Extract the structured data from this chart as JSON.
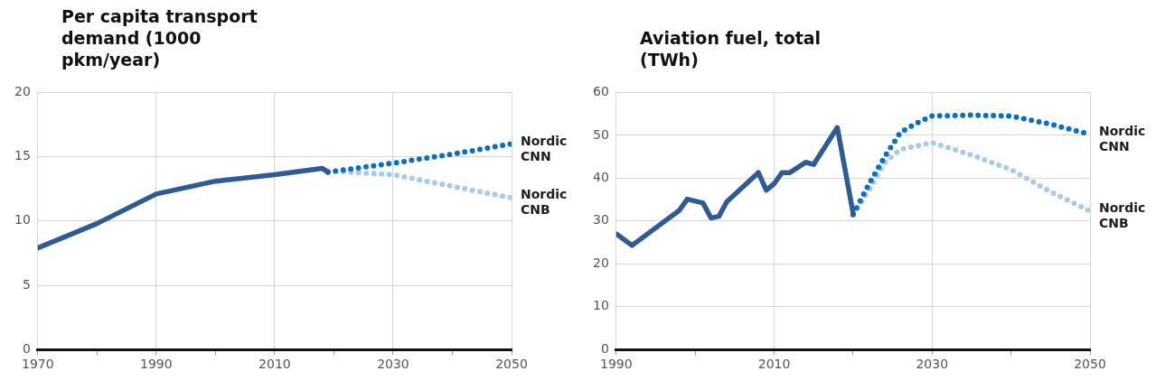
{
  "chart_data": [
    {
      "type": "line",
      "title": "Per capita transport demand (1000 pkm/year)",
      "xlim": [
        1970,
        2050
      ],
      "xticks": [
        1970,
        {
          "value": 1980,
          "label": null
        },
        1990,
        {
          "value": 2000,
          "label": null
        },
        2010,
        {
          "value": 2020,
          "label": null
        },
        2030,
        {
          "value": 2040,
          "label": null
        },
        2050
      ],
      "ylim": [
        0,
        20
      ],
      "yticks": [
        0,
        5,
        10,
        15,
        20
      ],
      "grid": true,
      "series": [
        {
          "color": "#2f5a94",
          "line_style": "solid",
          "x": [
            1970,
            1980,
            1990,
            2000,
            2010,
            2018,
            2019
          ],
          "values": [
            7.9,
            9.8,
            12.1,
            13.1,
            13.6,
            14.1,
            13.8
          ]
        },
        {
          "name": "Nordic CNN",
          "color": "#0b6fc0",
          "line_style": "dotted",
          "x": [
            2019,
            2030,
            2040,
            2050
          ],
          "values": [
            13.8,
            14.5,
            15.2,
            16.0
          ]
        },
        {
          "name": "Nordic CNB",
          "color": "#a8cbec",
          "line_style": "dotted",
          "x": [
            2019,
            2030,
            2040,
            2050
          ],
          "values": [
            13.9,
            13.6,
            12.7,
            11.8
          ]
        }
      ]
    },
    {
      "type": "line",
      "title": "Aviation fuel, total (TWh)",
      "xlim": [
        1990,
        2050
      ],
      "xticks": [
        1990,
        {
          "value": 2000,
          "label": null
        },
        2010,
        {
          "value": 2020,
          "label": null
        },
        2030,
        {
          "value": 2040,
          "label": null
        },
        2050
      ],
      "ylim": [
        0,
        60
      ],
      "yticks": [
        0,
        10,
        20,
        30,
        40,
        50,
        60
      ],
      "grid": true,
      "series": [
        {
          "color": "#2f5a94",
          "line_style": "solid",
          "x": [
            1990,
            1992,
            1995,
            1998,
            1999,
            2001,
            2002,
            2003,
            2004,
            2008,
            2009,
            2010,
            2011,
            2012,
            2014,
            2015,
            2018,
            2020
          ],
          "values": [
            27,
            24.3,
            28.4,
            32.5,
            35.1,
            34.2,
            30.7,
            31.1,
            34.5,
            41.3,
            37.2,
            38.7,
            41.3,
            41.3,
            43.7,
            43.2,
            51.8,
            31.8
          ]
        },
        {
          "name": "Nordic CNN",
          "color": "#0b6fc0",
          "line_style": "dotted",
          "x": [
            2020,
            2022,
            2024,
            2026,
            2028,
            2030,
            2035,
            2040,
            2045,
            2050
          ],
          "values": [
            31.5,
            38.6,
            45,
            50.7,
            52.8,
            54.5,
            54.7,
            54.5,
            52.6,
            50.2
          ]
        },
        {
          "name": "Nordic CNB",
          "color": "#a8cbec",
          "line_style": "dotted",
          "x": [
            2020,
            2022,
            2024,
            2026,
            2028,
            2030,
            2035,
            2040,
            2045,
            2050
          ],
          "values": [
            31.5,
            37.2,
            43.6,
            46.7,
            47.5,
            48.3,
            45.4,
            42,
            36.8,
            32.3
          ]
        }
      ]
    }
  ]
}
